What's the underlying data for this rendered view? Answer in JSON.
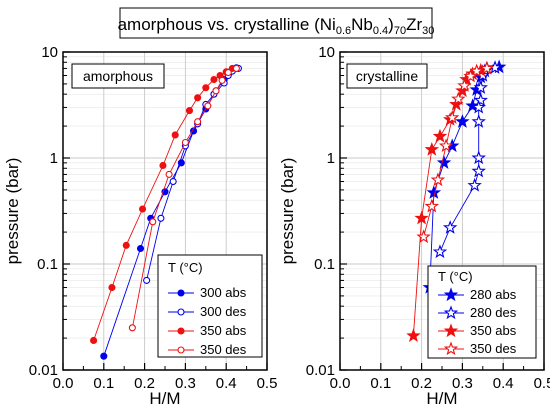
{
  "title": {
    "prefix": "amorphous vs. crystalline (Ni",
    "sub1": "0.6",
    "mid1": "Nb",
    "sub2": "0.4",
    "mid2": ")",
    "sub3": "70",
    "mid3": "Zr",
    "sub4": "30"
  },
  "colors": {
    "blue": "#0000ee",
    "red": "#ee1111",
    "grid": "#c8c8c8"
  },
  "chart_data": [
    {
      "type": "line",
      "panel_label": "amorphous",
      "xlabel": "H/M",
      "ylabel": "pressure (bar)",
      "xlim": [
        0.0,
        0.5
      ],
      "ylim": [
        0.01,
        10
      ],
      "yscale": "log",
      "grid": true,
      "x_ticks": [
        "0.0",
        "0.1",
        "0.2",
        "0.3",
        "0.4",
        "0.5"
      ],
      "y_ticks": [
        "0.01",
        "0.1",
        "1",
        "10"
      ],
      "legend_title": "T (°C)",
      "legend_position": "bottom-right",
      "series": [
        {
          "name": "300 abs",
          "color": "blue",
          "marker": "circle",
          "filled": true,
          "x": [
            0.1,
            0.19,
            0.215,
            0.25,
            0.29,
            0.32,
            0.35,
            0.375,
            0.395,
            0.41,
            0.425
          ],
          "y": [
            0.0135,
            0.14,
            0.27,
            0.48,
            0.9,
            1.8,
            2.9,
            4.3,
            5.5,
            6.5,
            7.1
          ]
        },
        {
          "name": "300 des",
          "color": "blue",
          "marker": "circle",
          "filled": false,
          "x": [
            0.43,
            0.415,
            0.405,
            0.395,
            0.37,
            0.35,
            0.33,
            0.3,
            0.27,
            0.24,
            0.205
          ],
          "y": [
            7.0,
            6.6,
            6.0,
            5.1,
            4.0,
            3.2,
            2.1,
            1.3,
            0.6,
            0.27,
            0.07
          ]
        },
        {
          "name": "350 abs",
          "color": "red",
          "marker": "circle",
          "filled": true,
          "x": [
            0.075,
            0.12,
            0.155,
            0.195,
            0.245,
            0.275,
            0.31,
            0.33,
            0.35,
            0.37,
            0.385,
            0.4,
            0.415
          ],
          "y": [
            0.019,
            0.06,
            0.15,
            0.33,
            0.85,
            1.65,
            2.8,
            3.7,
            4.6,
            5.5,
            6.0,
            6.5,
            7.0
          ]
        },
        {
          "name": "350 des",
          "color": "red",
          "marker": "circle",
          "filled": false,
          "x": [
            0.425,
            0.405,
            0.39,
            0.375,
            0.355,
            0.33,
            0.3,
            0.26,
            0.22,
            0.17
          ],
          "y": [
            7.0,
            6.4,
            5.4,
            4.3,
            3.1,
            2.2,
            1.4,
            0.7,
            0.25,
            0.025
          ]
        }
      ]
    },
    {
      "type": "line",
      "panel_label": "crystalline",
      "xlabel": "H/M",
      "ylabel": "pressure (bar)",
      "xlim": [
        0.0,
        0.5
      ],
      "ylim": [
        0.01,
        10
      ],
      "yscale": "log",
      "grid": true,
      "x_ticks": [
        "0.0",
        "0.1",
        "0.2",
        "0.3",
        "0.4",
        "0.5"
      ],
      "y_ticks": [
        "0.01",
        "0.1",
        "1",
        "10"
      ],
      "legend_title": "T (°C)",
      "legend_position": "bottom-right",
      "series": [
        {
          "name": "280 abs",
          "color": "blue",
          "marker": "star",
          "filled": true,
          "x": [
            0.22,
            0.23,
            0.255,
            0.275,
            0.3,
            0.325,
            0.335,
            0.345,
            0.35,
            0.36,
            0.39
          ],
          "y": [
            0.06,
            0.47,
            0.9,
            1.3,
            2.2,
            3.1,
            4.4,
            5.8,
            6.5,
            7.0,
            7.2
          ]
        },
        {
          "name": "280 des",
          "color": "blue",
          "marker": "star",
          "filled": false,
          "x": [
            0.38,
            0.355,
            0.35,
            0.345,
            0.345,
            0.34,
            0.34,
            0.34,
            0.34,
            0.33,
            0.27,
            0.245
          ],
          "y": [
            7.1,
            6.6,
            6.0,
            4.6,
            3.5,
            3.0,
            2.2,
            1.0,
            0.75,
            0.55,
            0.22,
            0.13
          ]
        },
        {
          "name": "350 abs",
          "color": "red",
          "marker": "star",
          "filled": true,
          "x": [
            0.18,
            0.2,
            0.225,
            0.245,
            0.27,
            0.285,
            0.3,
            0.31,
            0.325,
            0.345,
            0.36
          ],
          "y": [
            0.021,
            0.27,
            1.2,
            1.6,
            2.3,
            3.2,
            4.3,
            5.5,
            6.2,
            6.7,
            7.0
          ]
        },
        {
          "name": "350 des",
          "color": "red",
          "marker": "star",
          "filled": false,
          "x": [
            0.36,
            0.335,
            0.32,
            0.305,
            0.29,
            0.275,
            0.26,
            0.24,
            0.225,
            0.205
          ],
          "y": [
            7.0,
            6.6,
            5.9,
            4.8,
            3.6,
            2.4,
            1.3,
            0.62,
            0.35,
            0.18
          ]
        }
      ]
    }
  ]
}
